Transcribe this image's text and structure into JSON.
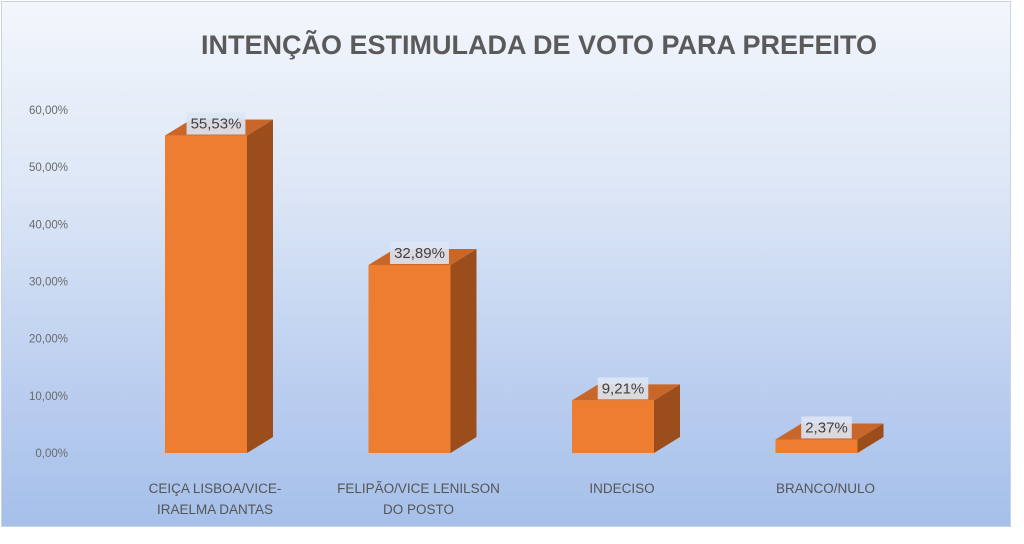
{
  "chart_data": {
    "type": "bar",
    "title": "INTENÇÃO ESTIMULADA DE VOTO PARA PREFEITO",
    "categories": [
      [
        "CEIÇA LISBOA/VICE-",
        "IRAELMA DANTAS"
      ],
      [
        "FELIPÃO/VICE LENILSON",
        "DO POSTO"
      ],
      [
        "INDECISO"
      ],
      [
        "BRANCO/NULO"
      ]
    ],
    "values": [
      55.53,
      32.89,
      9.21,
      2.37
    ],
    "data_labels": [
      "55,53%",
      "32,89%",
      "9,21%",
      "2,37%"
    ],
    "ylim": [
      0,
      60
    ],
    "yticks": [
      0,
      10,
      20,
      30,
      40,
      50,
      60
    ],
    "ytick_labels": [
      "0,00%",
      "10,00%",
      "20,00%",
      "30,00%",
      "40,00%",
      "50,00%",
      "60,00%"
    ],
    "grid": false,
    "legend": "none",
    "style": "3d-column",
    "colors": {
      "bar_front": "#ed7d31",
      "bar_side": "#9c4d1c",
      "bar_top": "#c9672a",
      "label_box": "#dde6f4"
    }
  }
}
